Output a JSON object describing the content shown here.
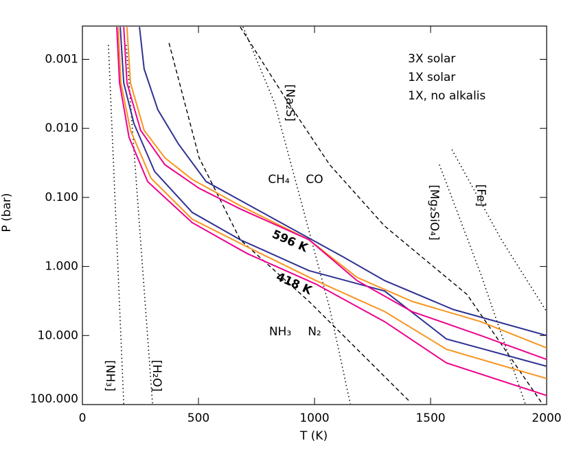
{
  "chart_data": {
    "type": "line",
    "x_label": "T (K)",
    "y_label": "P (bar)",
    "xlim": [
      0,
      2000
    ],
    "xticks": [
      0,
      500,
      1000,
      1500,
      2000
    ],
    "ylim": [
      0.00033,
      100
    ],
    "y_log": true,
    "y_inverted": true,
    "yticks": [
      {
        "value": 0.001,
        "label": "0.001"
      },
      {
        "value": 0.01,
        "label": "0.010"
      },
      {
        "value": 0.1,
        "label": "0.100"
      },
      {
        "value": 1,
        "label": "1.000"
      },
      {
        "value": 10,
        "label": "10.000"
      },
      {
        "value": 100,
        "label": "100.000"
      }
    ],
    "profile_labels": [
      "596 K",
      "418 K"
    ],
    "series": [
      {
        "name": "3X solar",
        "color": "#2e3192",
        "profiles": [
          {
            "x": [
              246,
              266,
              325,
              414,
              533,
              828,
              1124,
              1302,
              1598,
              2000
            ],
            "values": [
              0.00034,
              0.00138,
              0.0054,
              0.0169,
              0.059,
              0.207,
              0.73,
              1.6,
              4.2,
              10
            ]
          },
          {
            "x": [
              163,
              178,
              222,
              311,
              473,
              680,
              976,
              1302,
              1568,
              2000
            ],
            "values": [
              0.00034,
              0.0022,
              0.0085,
              0.042,
              0.165,
              0.41,
              1.15,
              2.27,
              11.2,
              27.9
            ]
          }
        ]
      },
      {
        "name": "1X solar",
        "color": "#f7941d",
        "profiles": [
          {
            "x": [
              192,
              207,
              266,
              355,
              473,
              680,
              976,
              1183,
              1420,
              1716,
              2000
            ],
            "values": [
              0.00034,
              0.0022,
              0.0107,
              0.0267,
              0.055,
              0.132,
              0.41,
              1.44,
              3.2,
              6.3,
              15.1
            ]
          },
          {
            "x": [
              154,
              166,
              207,
              296,
              473,
              710,
              1006,
              1302,
              1568,
              2000
            ],
            "values": [
              0.00034,
              0.0022,
              0.0107,
              0.053,
              0.207,
              0.52,
              1.6,
              4.5,
              15.8,
              42
            ]
          }
        ]
      },
      {
        "name": "1X, no alkalis",
        "color": "#ec008c",
        "profiles": [
          {
            "x": [
              178,
              192,
              251,
              355,
              503,
              680,
              976,
              1183,
              1420,
              1716,
              2000
            ],
            "values": [
              0.00034,
              0.0022,
              0.0107,
              0.0335,
              0.074,
              0.147,
              0.41,
              1.6,
              4.5,
              10,
              22.2
            ]
          },
          {
            "x": [
              148,
              160,
              201,
              281,
              473,
              710,
              1006,
              1302,
              1568,
              2000
            ],
            "values": [
              0.00034,
              0.0022,
              0.0135,
              0.059,
              0.232,
              0.65,
              1.8,
              6.3,
              24.9,
              74
            ]
          }
        ]
      }
    ],
    "condensation_curves": [
      {
        "label": "[NH₃]",
        "x": [
          112,
          178
        ],
        "values": [
          0.00062,
          98
        ]
      },
      {
        "label": "[H₂O]",
        "x": [
          189,
          302
        ],
        "values": [
          0.00062,
          98
        ]
      },
      {
        "label": "[Na₂S]",
        "x": [
          692,
          828,
          947,
          1065,
          1154
        ],
        "values": [
          0.00034,
          0.0043,
          0.132,
          4.0,
          98
        ]
      },
      {
        "label": "[Mg₂SiO₄]",
        "x": [
          1538,
          1716,
          1908
        ],
        "values": [
          0.0335,
          1.28,
          98
        ]
      },
      {
        "label": "[Fe]",
        "x": [
          1592,
          1805,
          2000
        ],
        "values": [
          0.0203,
          0.41,
          4.5
        ]
      }
    ],
    "chemical_boundaries": [
      {
        "labels": [
          "CH₄",
          "CO"
        ],
        "x": [
          680,
          888,
          1065,
          1302,
          1657,
          1982
        ],
        "values": [
          0.00034,
          0.0043,
          0.0335,
          0.26,
          2.55,
          98
        ]
      },
      {
        "labels": [
          "NH₃",
          "N₂"
        ],
        "x": [
          373,
          503,
          680,
          976,
          1405
        ],
        "values": [
          0.00058,
          0.0267,
          0.41,
          3.2,
          87
        ]
      }
    ]
  }
}
